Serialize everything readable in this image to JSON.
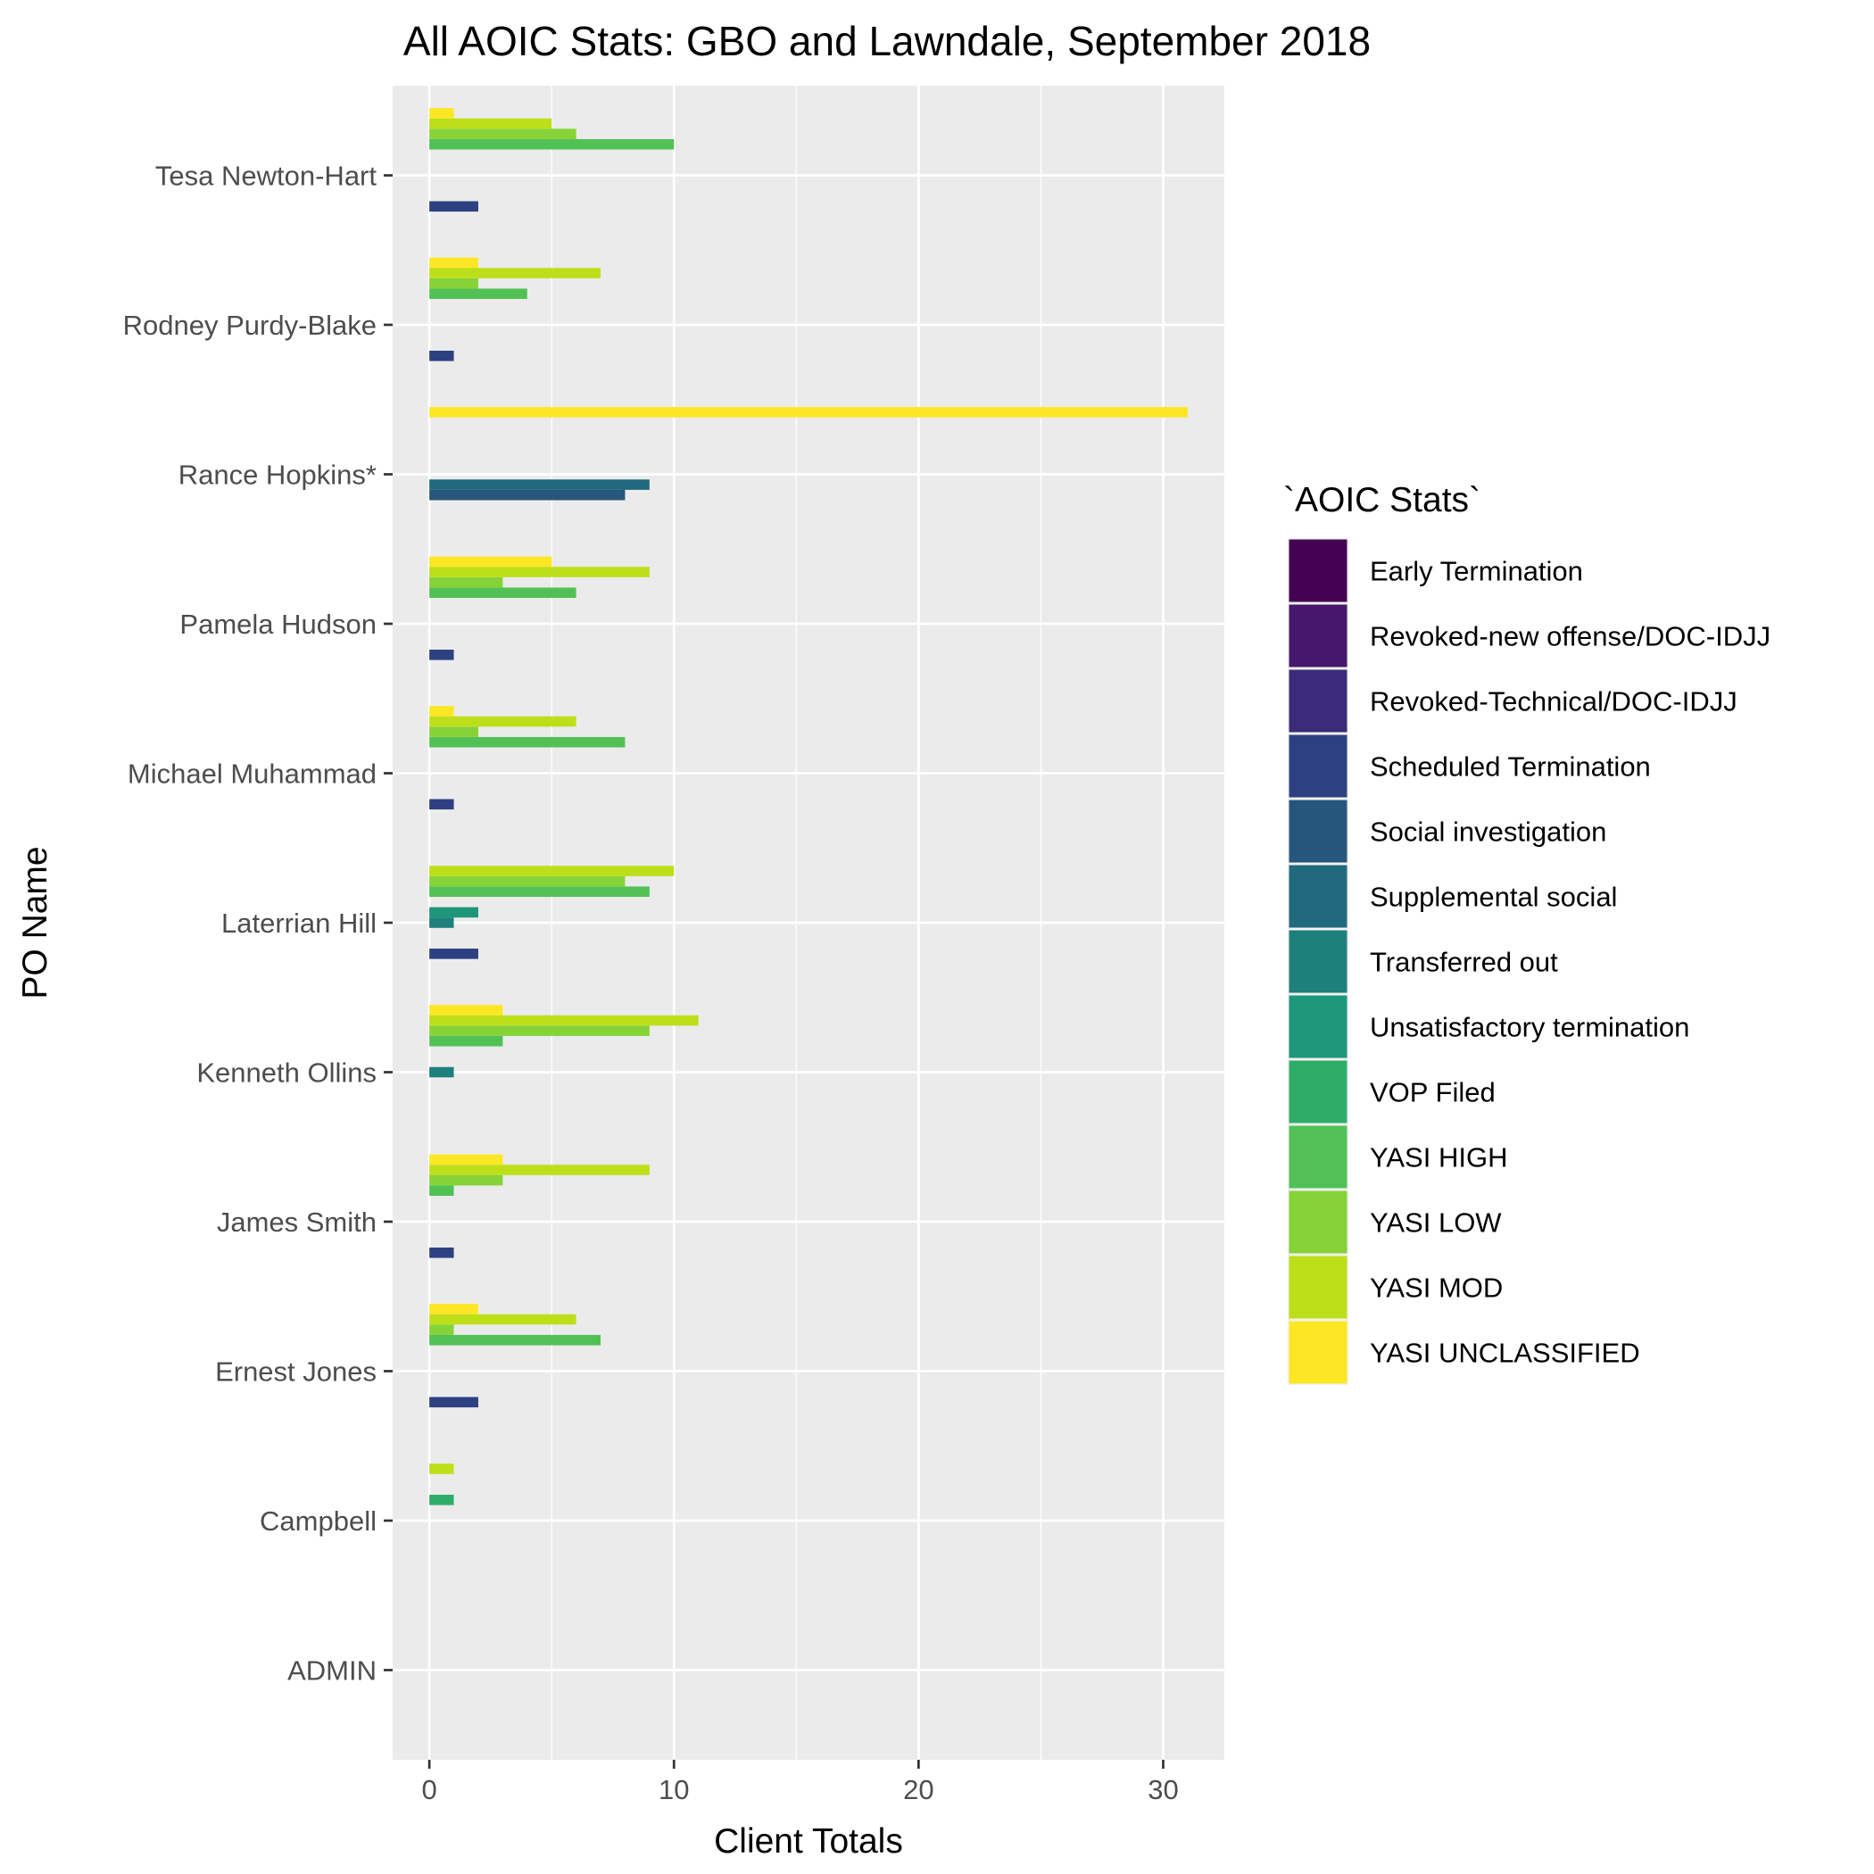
{
  "chart_data": {
    "type": "bar",
    "orientation": "horizontal",
    "title": "All AOIC Stats: GBO and Lawndale, September 2018",
    "xlabel": "Client Totals",
    "ylabel": "PO Name",
    "xlim": [
      -1.5,
      32.5
    ],
    "x_ticks": [
      0,
      10,
      20,
      30
    ],
    "grid": true,
    "legend_position": "right",
    "legend_title": "`AOIC Stats`",
    "categories": [
      "Tesa Newton-Hart",
      "Rodney Purdy-Blake",
      "Rance Hopkins*",
      "Pamela Hudson",
      "Michael Muhammad",
      "Laterrian Hill",
      "Kenneth Ollins",
      "James Smith",
      "Ernest Jones",
      "Campbell",
      "ADMIN"
    ],
    "series": [
      {
        "name": "Early Termination",
        "color": "#440154",
        "values": [
          0,
          0,
          0,
          0,
          0,
          0,
          0,
          0,
          0,
          0,
          0
        ]
      },
      {
        "name": "Revoked-new offense/DOC-IDJJ",
        "color": "#46186B",
        "values": [
          0,
          0,
          0,
          0,
          0,
          0,
          0,
          0,
          0,
          0,
          0
        ]
      },
      {
        "name": "Revoked-Technical/DOC-IDJJ",
        "color": "#3A2C7A",
        "values": [
          0,
          0,
          0,
          0,
          0,
          0,
          0,
          0,
          0,
          0,
          0
        ]
      },
      {
        "name": "Scheduled Termination",
        "color": "#2D4182",
        "values": [
          2,
          1,
          0,
          1,
          1,
          2,
          0,
          1,
          2,
          0,
          0
        ]
      },
      {
        "name": "Social investigation",
        "color": "#26567C",
        "values": [
          0,
          0,
          8,
          0,
          0,
          0,
          0,
          0,
          0,
          0,
          0
        ]
      },
      {
        "name": "Supplemental social",
        "color": "#21697C",
        "values": [
          0,
          0,
          9,
          0,
          0,
          0,
          0,
          0,
          0,
          0,
          0
        ]
      },
      {
        "name": "Transferred out",
        "color": "#1E807B",
        "values": [
          0,
          0,
          0,
          0,
          0,
          1,
          1,
          0,
          0,
          0,
          0
        ]
      },
      {
        "name": "Unsatisfactory termination",
        "color": "#1E9679",
        "values": [
          0,
          0,
          0,
          0,
          0,
          2,
          0,
          0,
          0,
          0,
          0
        ]
      },
      {
        "name": "VOP Filed",
        "color": "#2FAD68",
        "values": [
          0,
          0,
          0,
          0,
          0,
          0,
          0,
          0,
          0,
          1,
          0
        ]
      },
      {
        "name": "YASI HIGH",
        "color": "#52C155",
        "values": [
          10,
          4,
          0,
          6,
          8,
          9,
          3,
          1,
          7,
          0,
          0
        ]
      },
      {
        "name": "YASI LOW",
        "color": "#86D338",
        "values": [
          6,
          2,
          0,
          3,
          2,
          8,
          9,
          3,
          1,
          0,
          0
        ]
      },
      {
        "name": "YASI MOD",
        "color": "#BDDF1A",
        "values": [
          5,
          7,
          0,
          9,
          6,
          10,
          11,
          9,
          6,
          1,
          0
        ]
      },
      {
        "name": "YASI UNCLASSIFIED",
        "color": "#FDE725",
        "values": [
          1,
          2,
          31,
          5,
          1,
          0,
          3,
          3,
          2,
          0,
          0
        ]
      }
    ]
  }
}
